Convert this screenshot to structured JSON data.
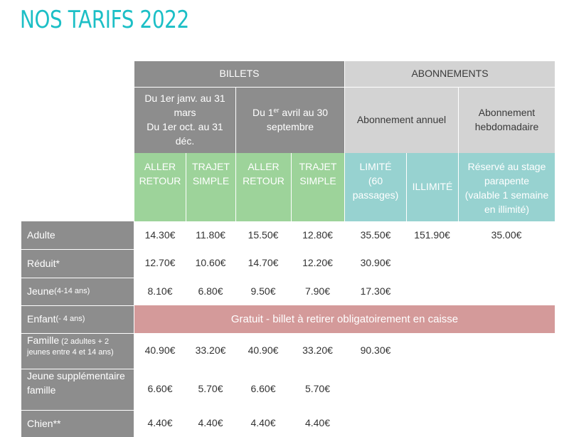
{
  "title": "NOS TARIFS 2022",
  "headers": {
    "billets": "BILLETS",
    "abonnements": "ABONNEMENTS",
    "period1": [
      "Du 1er janv. au 31",
      "mars",
      "Du 1er oct. au 31",
      "déc."
    ],
    "period2_pre": "Du 1",
    "period2_sup": "er",
    "period2_line1_rest": " avril au 30",
    "period2_line2": "septembre",
    "abo_annuel": "Abonnement annuel",
    "abo_hebdo": [
      "Abonnement",
      "hebdomadaire"
    ],
    "aller_retour": [
      "ALLER",
      "RETOUR"
    ],
    "trajet_simple": [
      "TRAJET",
      "SIMPLE"
    ],
    "limite": [
      "LIMITÉ",
      "(60",
      "passages)"
    ],
    "illimite": "ILLIMITÉ",
    "stage": [
      "Réservé au stage",
      "parapente",
      "(valable 1 semaine",
      "en illimité)"
    ]
  },
  "rows": [
    {
      "label": "Adulte",
      "note": "",
      "values": [
        "14.30€",
        "11.80€",
        "15.50€",
        "12.80€",
        "35.50€",
        "151.90€",
        "35.00€"
      ]
    },
    {
      "label": "Réduit*",
      "note": "",
      "values": [
        "12.70€",
        "10.60€",
        "14.70€",
        "12.20€",
        "30.90€",
        "",
        ""
      ]
    },
    {
      "label": "Jeune",
      "note": " (4-14 ans)",
      "values": [
        "8.10€",
        "6.80€",
        "9.50€",
        "7.90€",
        "17.30€",
        "",
        ""
      ]
    },
    {
      "label": "Enfant",
      "note": " (- 4 ans)",
      "merged": "Gratuit - billet à retirer obligatoirement en caisse"
    },
    {
      "label": "Famille",
      "note_line1": " (2 adultes + 2",
      "note_line2": "jeunes entre 4 et 14 ans)",
      "values": [
        "40.90€",
        "33.20€",
        "40.90€",
        "33.20€",
        "90.30€",
        "",
        ""
      ]
    },
    {
      "label_line1": "Jeune supplémentaire",
      "label_line2": "famille",
      "values": [
        "6.60€",
        "5.70€",
        "6.60€",
        "5.70€",
        "",
        "",
        ""
      ]
    },
    {
      "label": "Chien**",
      "note": "",
      "values": [
        "4.40€",
        "4.40€",
        "4.40€",
        "4.40€",
        "",
        "",
        ""
      ]
    }
  ]
}
